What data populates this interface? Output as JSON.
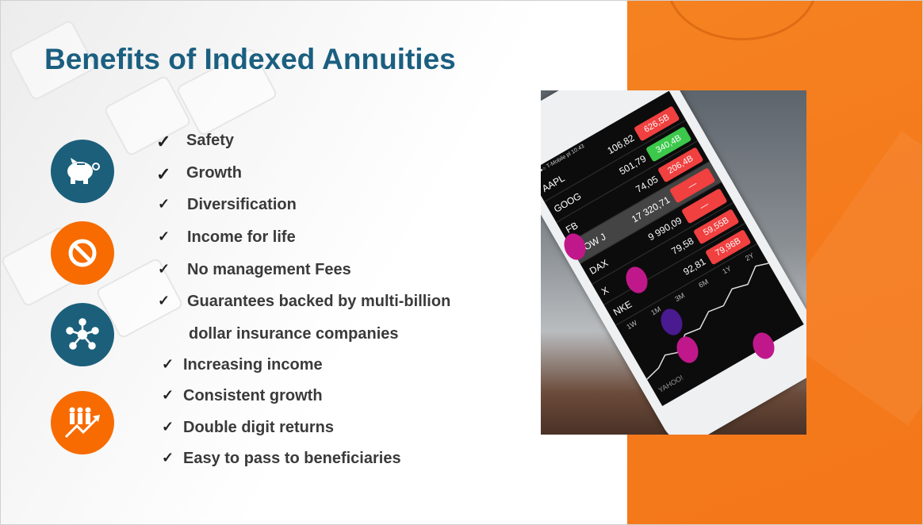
{
  "slide": {
    "title": "Benefits of Indexed Annuities",
    "icons": [
      {
        "name": "piggy-bank-icon",
        "color": "#1b5f7b"
      },
      {
        "name": "no-sign-icon",
        "color": "#f76b00"
      },
      {
        "name": "network-icon",
        "color": "#1b5f7b"
      },
      {
        "name": "people-growth-icon",
        "color": "#f76b00"
      }
    ],
    "check_icon": "✓",
    "items": [
      "Safety",
      "Growth",
      "Diversification",
      "Income for life",
      "No management Fees",
      "Guarantees backed by multi-billion",
      "dollar insurance companies",
      "Increasing income",
      "Consistent growth",
      "Double digit returns",
      "Easy to pass to beneficiaries"
    ],
    "accent_colors": {
      "title": "#1b5f80",
      "panel": "#f57a1c"
    }
  },
  "photo": {
    "status": "●●●○ T-Mobile pl   10:43",
    "stocks": [
      {
        "symbol": "AAPL",
        "price": "106,82",
        "change": "626,5B",
        "color": "#f04040"
      },
      {
        "symbol": "GOOG",
        "price": "501,79",
        "change": "340,4B",
        "color": "#3cc84a"
      },
      {
        "symbol": "FB",
        "price": "74,05",
        "change": "206,4B",
        "color": "#f04040"
      },
      {
        "symbol": "DOW J",
        "price": "17 320,71",
        "change": "—",
        "color": "#f04040"
      },
      {
        "symbol": "DAX",
        "price": "9 990,09",
        "change": "—",
        "color": "#f04040"
      },
      {
        "symbol": "X",
        "price": "79,58",
        "change": "59,55B",
        "color": "#f04040"
      },
      {
        "symbol": "NKE",
        "price": "92,81",
        "change": "79,96B",
        "color": "#f04040"
      }
    ],
    "ranges": [
      "1W",
      "1M",
      "3M",
      "6M",
      "1Y",
      "2Y"
    ],
    "footer": "YAHOO!"
  }
}
